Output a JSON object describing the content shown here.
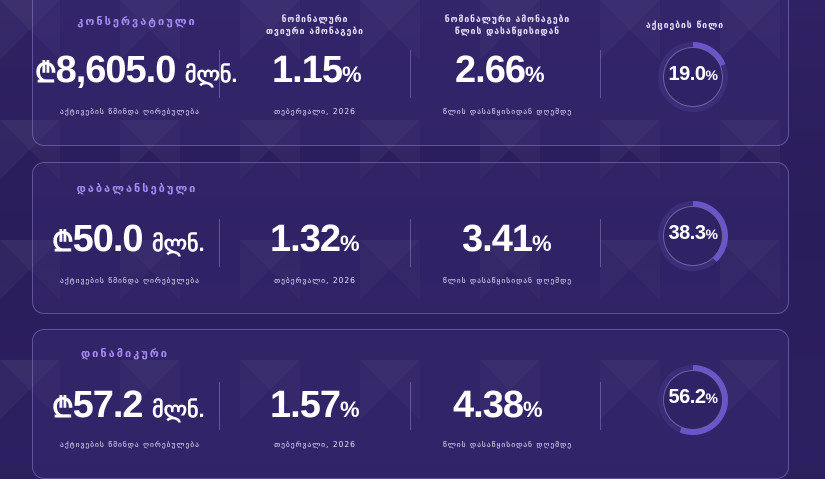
{
  "headers": {
    "nominal_monthly": [
      "ნომინალური",
      "თვიური ამონაგები"
    ],
    "nominal_annual": [
      "ნომინალური ამონაგები",
      "წლის დასაწყისიდან"
    ],
    "equity_share": "აქციების წილი"
  },
  "captions": {
    "nav": "აქტივების წმინდა ღირებულება",
    "month": "თებერვალი, 2026",
    "ytd": "წლის დასაწყისიდან დღემდე"
  },
  "currency_symbol": "₾",
  "unit": "მლნ.",
  "pct_sign": "%",
  "funds": [
    {
      "name": "კონსერვატიული",
      "nav": "8,605.0",
      "monthly": "1.15",
      "ytd": "2.66",
      "equity": "19.0",
      "equity_fraction": 0.19
    },
    {
      "name": "დაბალანსებული",
      "nav": "50.0",
      "monthly": "1.32",
      "ytd": "3.41",
      "equity": "38.3",
      "equity_fraction": 0.383
    },
    {
      "name": "დინამიკური",
      "nav": "57.2",
      "monthly": "1.57",
      "ytd": "4.38",
      "equity": "56.2",
      "equity_fraction": 0.562
    }
  ],
  "colors": {
    "accent": "#a58cf5",
    "donut_fill": "#6a56c8",
    "donut_track": "#3b2d78"
  }
}
